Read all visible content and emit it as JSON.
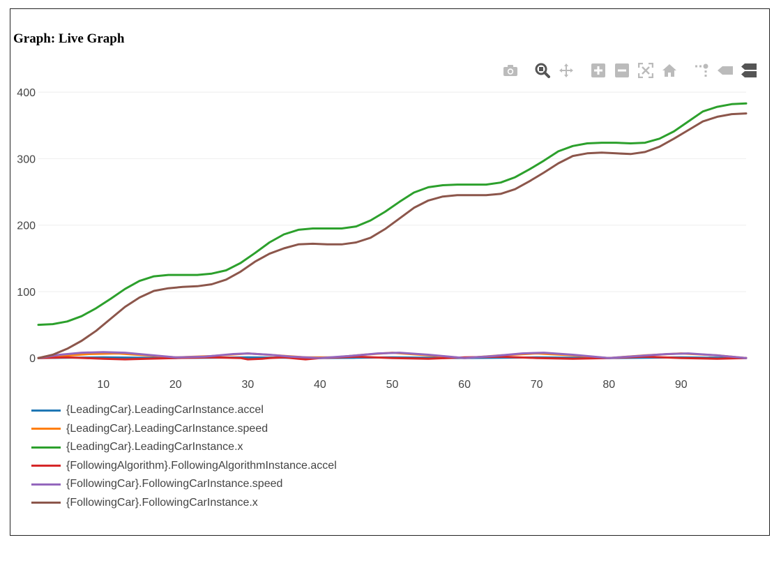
{
  "graph": {
    "title": "Graph: Live Graph"
  },
  "modebar": {
    "buttons": [
      {
        "name": "camera-icon",
        "group": 0
      },
      {
        "name": "zoom-icon",
        "group": 1,
        "active": true
      },
      {
        "name": "pan-icon",
        "group": 1
      },
      {
        "name": "zoom-in-icon",
        "group": 2
      },
      {
        "name": "zoom-out-icon",
        "group": 2
      },
      {
        "name": "autoscale-icon",
        "group": 2
      },
      {
        "name": "reset-axes-icon",
        "group": 2
      },
      {
        "name": "toggle-spikelines-icon",
        "group": 3
      },
      {
        "name": "hover-closest-icon",
        "group": 3
      },
      {
        "name": "hover-compare-icon",
        "group": 3
      }
    ]
  },
  "chart_data": {
    "type": "line",
    "title": "",
    "xlabel": "",
    "ylabel": "",
    "xlim": [
      1,
      99
    ],
    "ylim": [
      -5,
      418
    ],
    "xticks": [
      10,
      20,
      30,
      40,
      50,
      60,
      70,
      80,
      90
    ],
    "yticks": [
      0,
      100,
      200,
      300,
      400
    ],
    "grid": true,
    "legend_position": "bottom",
    "series": [
      {
        "name": "{LeadingCar}.LeadingCarInstance.accel",
        "color": "#1f77b4",
        "x": [
          1,
          5,
          10,
          15,
          20,
          25,
          30,
          35,
          40,
          45,
          50,
          55,
          60,
          65,
          70,
          75,
          80,
          85,
          90,
          95,
          99
        ],
        "y": [
          0,
          0.5,
          1,
          0.5,
          0,
          0.5,
          1,
          0.5,
          0,
          0.5,
          1,
          0.5,
          0,
          0.5,
          1,
          0.5,
          0,
          0.5,
          1,
          0.5,
          0
        ]
      },
      {
        "name": "{LeadingCar}.LeadingCarInstance.speed",
        "color": "#ff7f0e",
        "x": [
          1,
          4,
          8,
          12,
          16,
          20,
          25,
          30,
          34,
          38,
          42,
          46,
          50,
          55,
          60,
          65,
          70,
          75,
          80,
          85,
          90,
          95,
          99
        ],
        "y": [
          0,
          3,
          6,
          7,
          4,
          1,
          3,
          7,
          4,
          1,
          1,
          5,
          8,
          4,
          0,
          4,
          7,
          4,
          0,
          4,
          7,
          4,
          0
        ]
      },
      {
        "name": "{LeadingCar}.LeadingCarInstance.x",
        "color": "#2ca02c",
        "x": [
          1,
          3,
          5,
          7,
          9,
          11,
          13,
          15,
          17,
          19,
          21,
          23,
          25,
          27,
          29,
          31,
          33,
          35,
          37,
          39,
          41,
          43,
          45,
          47,
          49,
          51,
          53,
          55,
          57,
          59,
          61,
          63,
          65,
          67,
          69,
          71,
          73,
          75,
          77,
          79,
          81,
          83,
          85,
          87,
          89,
          91,
          93,
          95,
          97,
          99
        ],
        "y": [
          50,
          51,
          55,
          63,
          75,
          89,
          104,
          116,
          123,
          125,
          125,
          125,
          127,
          132,
          143,
          158,
          174,
          186,
          193,
          195,
          195,
          195,
          198,
          207,
          220,
          235,
          249,
          257,
          260,
          261,
          261,
          261,
          264,
          272,
          284,
          297,
          311,
          319,
          323,
          324,
          324,
          323,
          324,
          330,
          341,
          356,
          371,
          378,
          382,
          383
        ]
      },
      {
        "name": "{FollowingAlgorithm}.FollowingAlgorithmInstance.accel",
        "color": "#d62728",
        "x": [
          1,
          5,
          10,
          13,
          16,
          20,
          25,
          29,
          30,
          32,
          33,
          35,
          37,
          38,
          40,
          45,
          50,
          55,
          60,
          65,
          70,
          75,
          80,
          85,
          90,
          95,
          99
        ],
        "y": [
          0,
          1,
          -1,
          -2,
          -1,
          0,
          1,
          0,
          -2,
          -1,
          0,
          1,
          -1,
          -2,
          0,
          2,
          0,
          -1,
          1,
          2,
          0,
          -1,
          0,
          2,
          0,
          -1,
          0
        ]
      },
      {
        "name": "{FollowingCar}.FollowingCarInstance.speed",
        "color": "#9467bd",
        "x": [
          1,
          4,
          7,
          10,
          13,
          16,
          20,
          24,
          28,
          30,
          33,
          36,
          40,
          44,
          48,
          51,
          55,
          60,
          64,
          68,
          71,
          75,
          80,
          84,
          88,
          91,
          95,
          99
        ],
        "y": [
          0,
          5,
          8,
          9,
          8,
          5,
          1,
          2,
          6,
          7,
          5,
          2,
          0,
          3,
          7,
          8,
          5,
          0,
          3,
          7,
          8,
          5,
          0,
          3,
          6,
          7,
          4,
          0
        ]
      },
      {
        "name": "{FollowingCar}.FollowingCarInstance.x",
        "color": "#8c564b",
        "x": [
          1,
          3,
          5,
          7,
          9,
          11,
          13,
          15,
          17,
          19,
          21,
          23,
          25,
          27,
          29,
          31,
          33,
          35,
          37,
          39,
          41,
          43,
          45,
          47,
          49,
          51,
          53,
          55,
          57,
          59,
          61,
          63,
          65,
          67,
          69,
          71,
          73,
          75,
          77,
          79,
          81,
          83,
          85,
          87,
          89,
          91,
          93,
          95,
          97,
          99
        ],
        "y": [
          0,
          5,
          14,
          26,
          41,
          59,
          77,
          91,
          101,
          105,
          107,
          108,
          111,
          118,
          130,
          145,
          157,
          165,
          171,
          172,
          171,
          171,
          174,
          181,
          194,
          210,
          226,
          237,
          243,
          245,
          245,
          245,
          247,
          254,
          266,
          279,
          293,
          304,
          308,
          309,
          308,
          307,
          310,
          318,
          330,
          343,
          356,
          363,
          367,
          368
        ]
      }
    ]
  }
}
